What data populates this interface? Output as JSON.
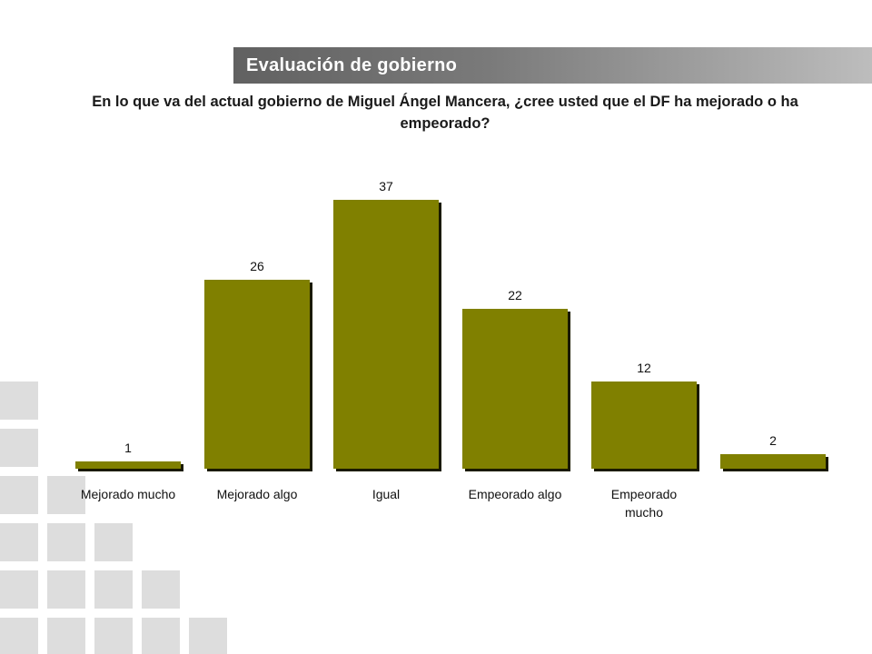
{
  "header": {
    "title": "Evaluación de gobierno",
    "question": "En lo que va del actual gobierno de Miguel Ángel Mancera, ¿cree usted que el DF ha mejorado o ha empeorado?"
  },
  "colors": {
    "bar": "#808000",
    "bar_shadow": "#1a1a00",
    "deco_squares": "#dddddd"
  },
  "chart_data": {
    "type": "bar",
    "title": "",
    "xlabel": "",
    "ylabel": "",
    "categories": [
      "Mejorado mucho",
      "Mejorado algo",
      "Igual",
      "Empeorado algo",
      "Empeorado mucho",
      ""
    ],
    "values": [
      1,
      26,
      37,
      22,
      12,
      2
    ],
    "ylim": [
      0,
      40
    ],
    "grid": false,
    "legend": "none"
  }
}
